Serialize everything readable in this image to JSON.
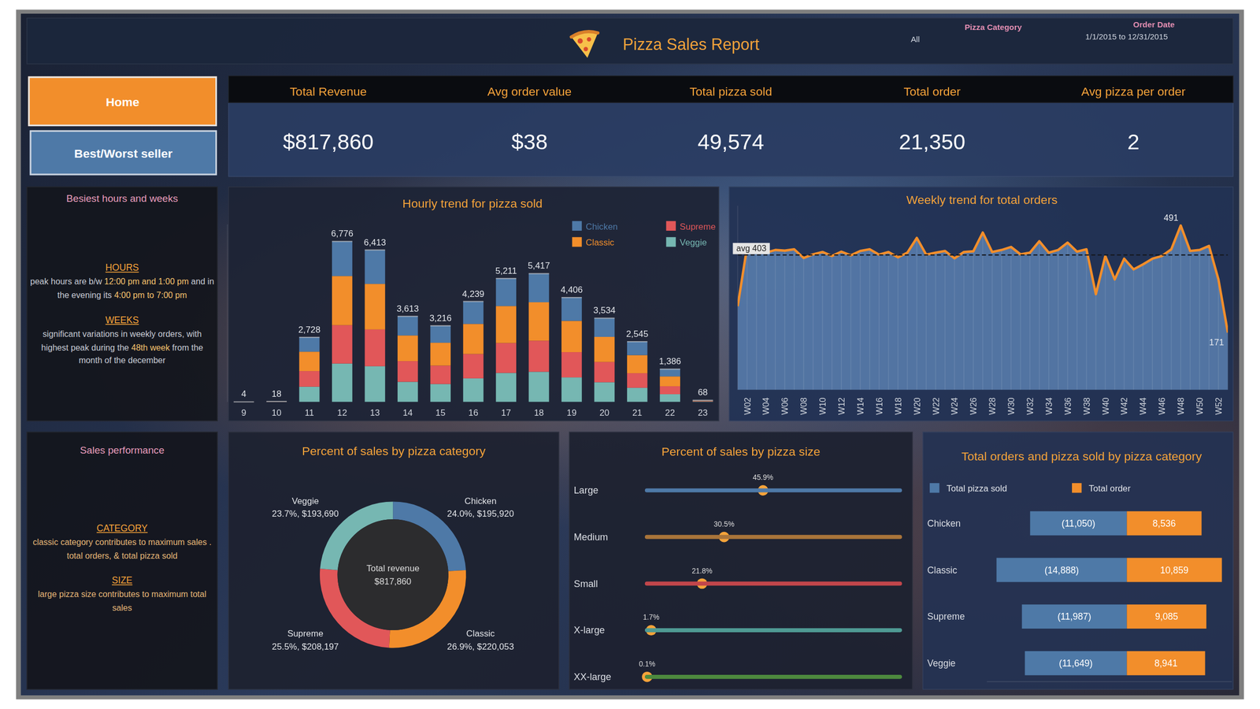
{
  "header": {
    "title": "Pizza Sales Report",
    "filters": [
      {
        "label": "Pizza Category",
        "value": "All"
      },
      {
        "label": "Order Date",
        "value": "1/1/2015 to 12/31/2015"
      }
    ]
  },
  "nav": [
    "Home",
    "Best/Worst seller"
  ],
  "kpis": [
    {
      "label": "Total Revenue",
      "value": "$817,860"
    },
    {
      "label": "Avg order value",
      "value": "$38"
    },
    {
      "label": "Total pizza sold",
      "value": "49,574"
    },
    {
      "label": "Total order",
      "value": "21,350"
    },
    {
      "label": "Avg pizza per order",
      "value": "2"
    }
  ],
  "notes": [
    {
      "title": "Besiest hours and weeks",
      "sections": [
        {
          "heading": "HOURS",
          "parts": [
            "peak hours are b/w ",
            "12:00 pm and 1:00 pm",
            " and in the evening its ",
            "4:00 pm to 7:00 pm"
          ]
        },
        {
          "heading": "WEEKS",
          "parts": [
            "significant variations in weekly orders, with highest peak during the ",
            "48th week",
            " from the month of the december"
          ]
        }
      ]
    },
    {
      "title": "Sales performance",
      "sections": [
        {
          "heading": "CATEGORY",
          "parts": [
            "classic category contributes to maximum sales . total orders, & total pizza sold"
          ]
        },
        {
          "heading": "SIZE",
          "parts": [
            "large pizza size contributes to maximum total sales"
          ]
        }
      ]
    }
  ],
  "chart_data": [
    {
      "type": "bar",
      "title": "Hourly trend for pizza sold",
      "stacked": true,
      "legend": "top-right",
      "tick_labels": "x",
      "categories": [
        9,
        10,
        11,
        12,
        13,
        14,
        15,
        16,
        17,
        18,
        19,
        20,
        21,
        22,
        23
      ],
      "series": [
        {
          "name": "Veggie",
          "color": "#76b7b2",
          "values": [
            1,
            4,
            642,
            1620,
            1507,
            849,
            756,
            996,
            1225,
            1273,
            1035,
            831,
            597,
            326,
            16
          ]
        },
        {
          "name": "Supreme",
          "color": "#e15759",
          "values": [
            1,
            4,
            660,
            1620,
            1552,
            874,
            778,
            1026,
            1261,
            1311,
            1066,
            855,
            616,
            335,
            17
          ]
        },
        {
          "name": "Classic",
          "color": "#f28e2b",
          "values": [
            1,
            6,
            818,
            2075,
            1924,
            1084,
            965,
            1272,
            1563,
            1625,
            1322,
            1060,
            764,
            416,
            20
          ]
        },
        {
          "name": "Chicken",
          "color": "#4e79a7",
          "values": [
            1,
            4,
            608,
            1461,
            1430,
            806,
            717,
            945,
            1162,
            1208,
            983,
            788,
            568,
            309,
            15
          ]
        }
      ],
      "totals": [
        4,
        18,
        2728,
        6776,
        6413,
        3613,
        3216,
        4239,
        5211,
        5417,
        4406,
        3534,
        2545,
        1386,
        68
      ],
      "total_labels": [
        "4",
        "18",
        "2,728",
        "6,776",
        "6,413",
        "3,613",
        "3,216",
        "4,239",
        "5,211",
        "5,417",
        "4,406",
        "3,534",
        "2,545",
        "1,386",
        "68"
      ],
      "ylim": [
        0,
        7500
      ]
    },
    {
      "type": "area",
      "title": "Weekly trend for total orders",
      "color": "#f28e2b",
      "tick_labels": "x",
      "categories": [
        null,
        "W02",
        null,
        "W04",
        null,
        "W06",
        null,
        "W08",
        null,
        "W10",
        null,
        "W12",
        null,
        "W14",
        null,
        "W16",
        null,
        "W18",
        null,
        "W20",
        null,
        "W22",
        null,
        "W24",
        null,
        "W26",
        null,
        "W28",
        null,
        "W30",
        null,
        "W32",
        null,
        "W34",
        null,
        "W36",
        null,
        "W38",
        null,
        "W40",
        null,
        "W42",
        null,
        "W44",
        null,
        "W46",
        null,
        "W48",
        null,
        "W50",
        null,
        "W52",
        null
      ],
      "values": [
        250,
        427,
        420,
        410,
        418,
        416,
        420,
        394,
        405,
        412,
        400,
        413,
        402,
        415,
        420,
        404,
        412,
        396,
        410,
        454,
        404,
        410,
        415,
        393,
        412,
        414,
        470,
        412,
        418,
        427,
        405,
        410,
        444,
        410,
        418,
        440,
        413,
        420,
        286,
        400,
        330,
        392,
        360,
        375,
        392,
        400,
        420,
        491,
        415,
        418,
        430,
        330,
        171
      ],
      "value_labels": [
        null,
        null,
        null,
        null,
        null,
        null,
        null,
        null,
        null,
        null,
        null,
        null,
        null,
        null,
        null,
        null,
        null,
        null,
        null,
        null,
        null,
        null,
        null,
        null,
        null,
        null,
        null,
        null,
        null,
        null,
        null,
        null,
        null,
        null,
        null,
        null,
        null,
        null,
        null,
        null,
        null,
        null,
        null,
        null,
        null,
        null,
        null,
        "491",
        null,
        null,
        null,
        null,
        "171"
      ],
      "reference_line": {
        "value": 403,
        "label": "avg 403"
      },
      "ylim": [
        0,
        550
      ]
    },
    {
      "type": "donut",
      "title": "Percent of sales by pizza category",
      "categories": [
        "Chicken",
        "Classic",
        "Supreme",
        "Veggie"
      ],
      "values": [
        24.0,
        26.9,
        25.5,
        23.7
      ],
      "value_labels": [
        "24.0%",
        "26.9%",
        "25.5%",
        "23.7%"
      ],
      "revenue_labels": [
        "$195,920",
        "$220,053",
        "$208,197",
        "$193,690"
      ],
      "colors": [
        "#4e79a7",
        "#f28e2b",
        "#e15759",
        "#76b7b2"
      ],
      "center_title": "Total revenue",
      "center_label": "$817,860"
    },
    {
      "type": "lollipop",
      "title": "Percent of sales by pizza size",
      "orientation": "horizontal",
      "tick_labels": "y",
      "categories": [
        "Large",
        "Medium",
        "Small",
        "X-large",
        "XX-large"
      ],
      "values": [
        45.9,
        30.5,
        21.8,
        1.7,
        0.1
      ],
      "value_labels": [
        "45.9%",
        "30.5%",
        "21.8%",
        "1.7%",
        "0.1%"
      ],
      "colors": [
        "#4e79a7",
        "#a9743a",
        "#c2464b",
        "#4f9a94",
        "#4d8a3e"
      ],
      "color": "#f5a33a",
      "data_labels": true,
      "xlim": [
        0,
        100
      ]
    },
    {
      "type": "bar",
      "title": "Total orders and pizza sold by pizza category",
      "orientation": "horizontal",
      "data_labels": true,
      "legend": "top",
      "tick_labels": "y",
      "categories": [
        "Chicken",
        "Classic",
        "Supreme",
        "Veggie"
      ],
      "series": [
        {
          "name": "Total pizza sold",
          "color": "#4e79a7",
          "values": [
            -11050,
            -14888,
            -11987,
            -11649
          ],
          "value_labels": [
            "(11,050)",
            "(14,888)",
            "(11,987)",
            "(11,649)"
          ]
        },
        {
          "name": "Total order",
          "color": "#f28e2b",
          "values": [
            8536,
            10859,
            9085,
            8941
          ],
          "value_labels": [
            "8,536",
            "10,859",
            "9,085",
            "8,941"
          ]
        }
      ],
      "xlim": [
        -16000,
        12000
      ]
    }
  ]
}
